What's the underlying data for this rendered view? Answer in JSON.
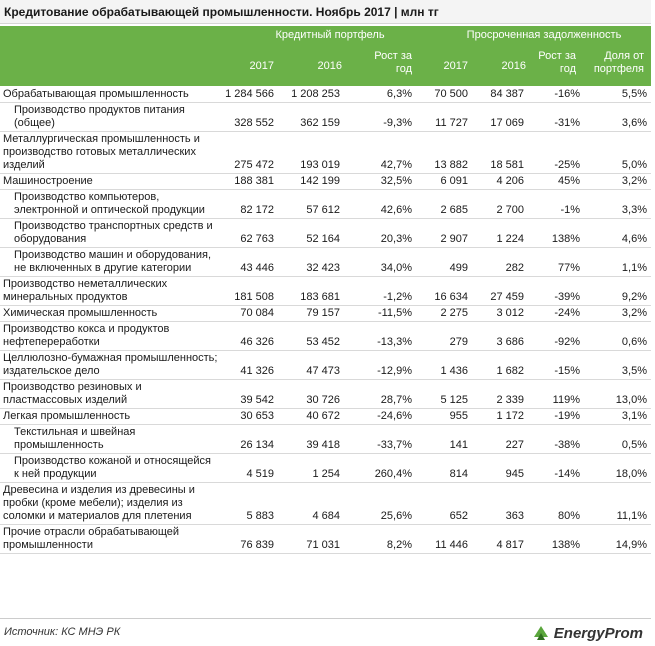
{
  "title": "Кредитование обрабатывающей промышленности. Ноябрь 2017 | млн тг",
  "header": {
    "group1": "Кредитный портфель",
    "group2": "Просроченная задолженность",
    "columns": [
      "2017",
      "2016",
      "Рост за год",
      "2017",
      "2016",
      "Рост за год",
      "Доля от портфеля"
    ]
  },
  "rows": [
    {
      "name": "Обрабатывающая промышленность",
      "level": 0,
      "values": [
        "1 284 566",
        "1 208 253",
        "6,3%",
        "70 500",
        "84 387",
        "-16%",
        "5,5%"
      ]
    },
    {
      "name": "Производство продуктов питания (общее)",
      "level": 1,
      "values": [
        "328 552",
        "362 159",
        "-9,3%",
        "11 727",
        "17 069",
        "-31%",
        "3,6%"
      ]
    },
    {
      "name": "Металлургическая промышленность и производство готовых металлических изделий",
      "level": 0,
      "values": [
        "275 472",
        "193 019",
        "42,7%",
        "13 882",
        "18 581",
        "-25%",
        "5,0%"
      ]
    },
    {
      "name": "Машиностроение",
      "level": 0,
      "values": [
        "188 381",
        "142 199",
        "32,5%",
        "6 091",
        "4 206",
        "45%",
        "3,2%"
      ]
    },
    {
      "name": "Производство компьютеров, электронной и оптической продукции",
      "level": 1,
      "values": [
        "82 172",
        "57 612",
        "42,6%",
        "2 685",
        "2 700",
        "-1%",
        "3,3%"
      ]
    },
    {
      "name": "Производство транспортных средств и оборудования",
      "level": 1,
      "values": [
        "62 763",
        "52 164",
        "20,3%",
        "2 907",
        "1 224",
        "138%",
        "4,6%"
      ]
    },
    {
      "name": "Производство машин и оборудования, не включенных в другие категории",
      "level": 1,
      "values": [
        "43 446",
        "32 423",
        "34,0%",
        "499",
        "282",
        "77%",
        "1,1%"
      ]
    },
    {
      "name": "Производство неметаллических минеральных продуктов",
      "level": 0,
      "values": [
        "181 508",
        "183 681",
        "-1,2%",
        "16 634",
        "27 459",
        "-39%",
        "9,2%"
      ]
    },
    {
      "name": "Химическая промышленность",
      "level": 0,
      "values": [
        "70 084",
        "79 157",
        "-11,5%",
        "2 275",
        "3 012",
        "-24%",
        "3,2%"
      ]
    },
    {
      "name": "Производство кокса и продуктов нефтепереработки",
      "level": 0,
      "values": [
        "46 326",
        "53 452",
        "-13,3%",
        "279",
        "3 686",
        "-92%",
        "0,6%"
      ]
    },
    {
      "name": "Целлюлозно-бумажная промышленность; издательское дело",
      "level": 0,
      "values": [
        "41 326",
        "47 473",
        "-12,9%",
        "1 436",
        "1 682",
        "-15%",
        "3,5%"
      ]
    },
    {
      "name": "Производство резиновых и пластмассовых изделий",
      "level": 0,
      "values": [
        "39 542",
        "30 726",
        "28,7%",
        "5 125",
        "2 339",
        "119%",
        "13,0%"
      ]
    },
    {
      "name": "Легкая промышленность",
      "level": 0,
      "values": [
        "30 653",
        "40 672",
        "-24,6%",
        "955",
        "1 172",
        "-19%",
        "3,1%"
      ]
    },
    {
      "name": "Текстильная и швейная промышленность",
      "level": 1,
      "values": [
        "26 134",
        "39 418",
        "-33,7%",
        "141",
        "227",
        "-38%",
        "0,5%"
      ]
    },
    {
      "name": "Производство кожаной и относящейся к ней продукции",
      "level": 1,
      "values": [
        "4 519",
        "1 254",
        "260,4%",
        "814",
        "945",
        "-14%",
        "18,0%"
      ]
    },
    {
      "name": "Древесина и изделия из древесины и пробки (кроме мебели); изделия из соломки и материалов для плетения",
      "level": 0,
      "values": [
        "5 883",
        "4 684",
        "25,6%",
        "652",
        "363",
        "80%",
        "11,1%"
      ]
    },
    {
      "name": "Прочие отрасли обрабатывающей промышленности",
      "level": 0,
      "values": [
        "76 839",
        "71 031",
        "8,2%",
        "11 446",
        "4 817",
        "138%",
        "14,9%"
      ]
    }
  ],
  "footer": {
    "source": "Источник: КС МНЭ РК",
    "logo_text": "EnergyProm"
  },
  "colors": {
    "header_bg": "#6bb148",
    "logo_accent": "#5aa63c"
  }
}
